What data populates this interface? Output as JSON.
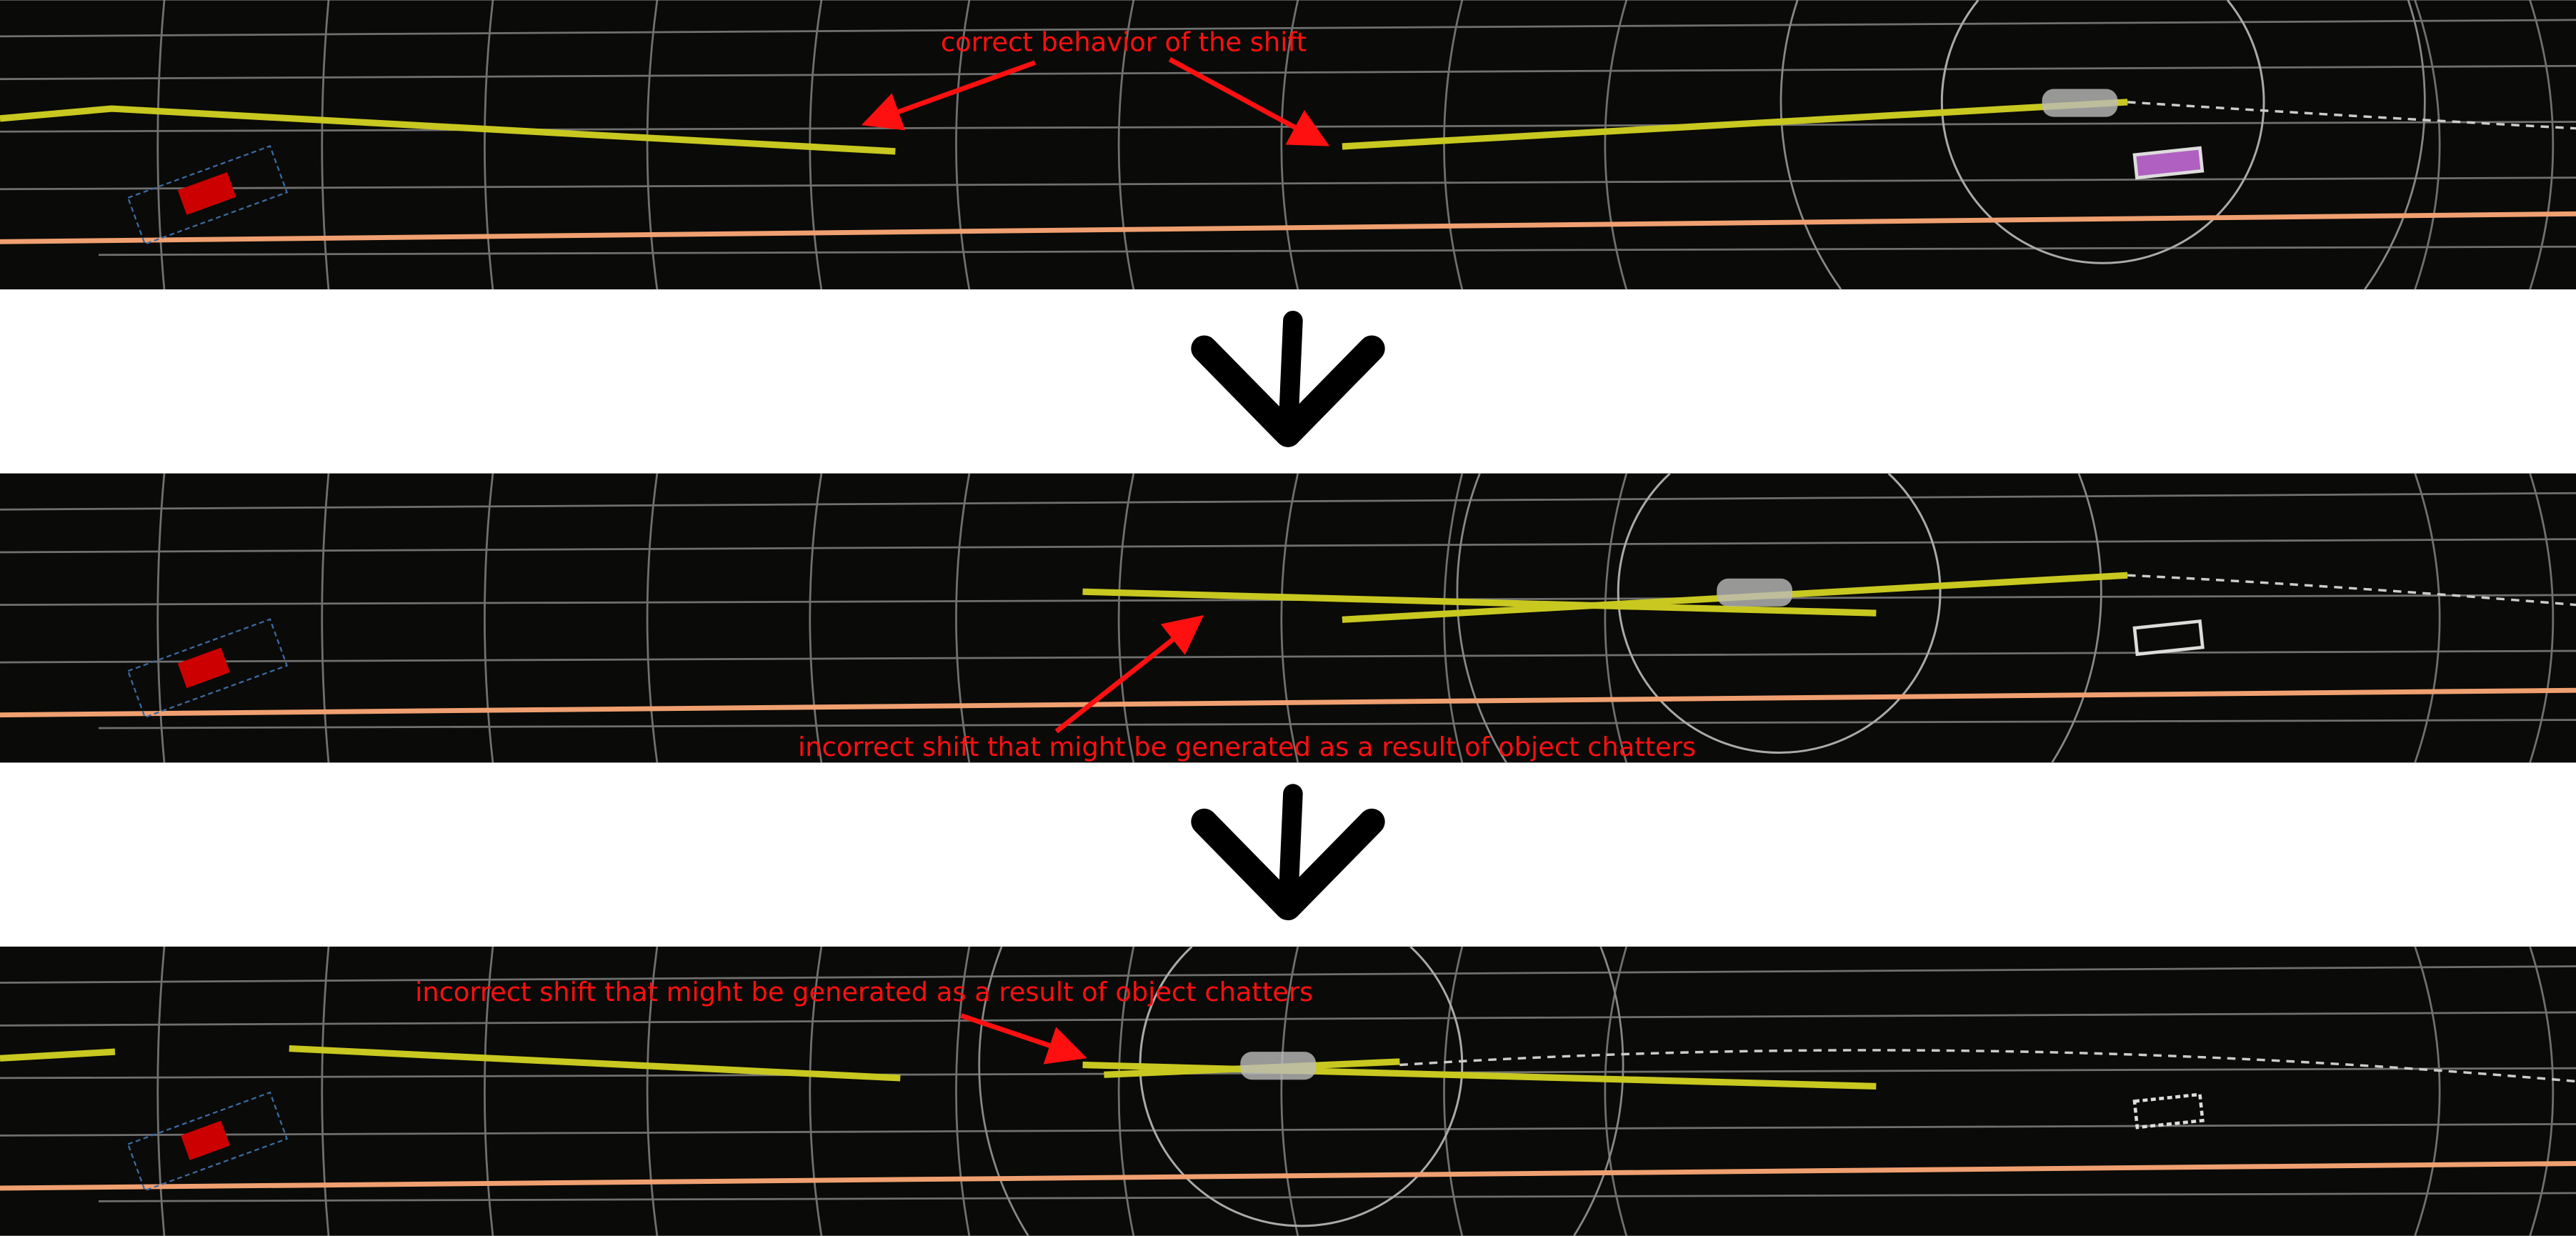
{
  "annotations": {
    "panel1": "correct behavior of the shift",
    "panel2": "incorrect shift that might be generated as a result of object chatters",
    "panel3": "incorrect shift that might be generated as a result of object chatters"
  },
  "colors": {
    "background": "#0a0a08",
    "path": "#c8c820",
    "lane_boundary": "#f0a070",
    "grid": "#9a9a9a",
    "annotation": "#ff1010",
    "object_obstacle": "#cc0000",
    "object_other": "#b060c0",
    "transition_arrow": "#000000"
  },
  "icons": {
    "transition": "chevron-down-arrow-icon"
  }
}
